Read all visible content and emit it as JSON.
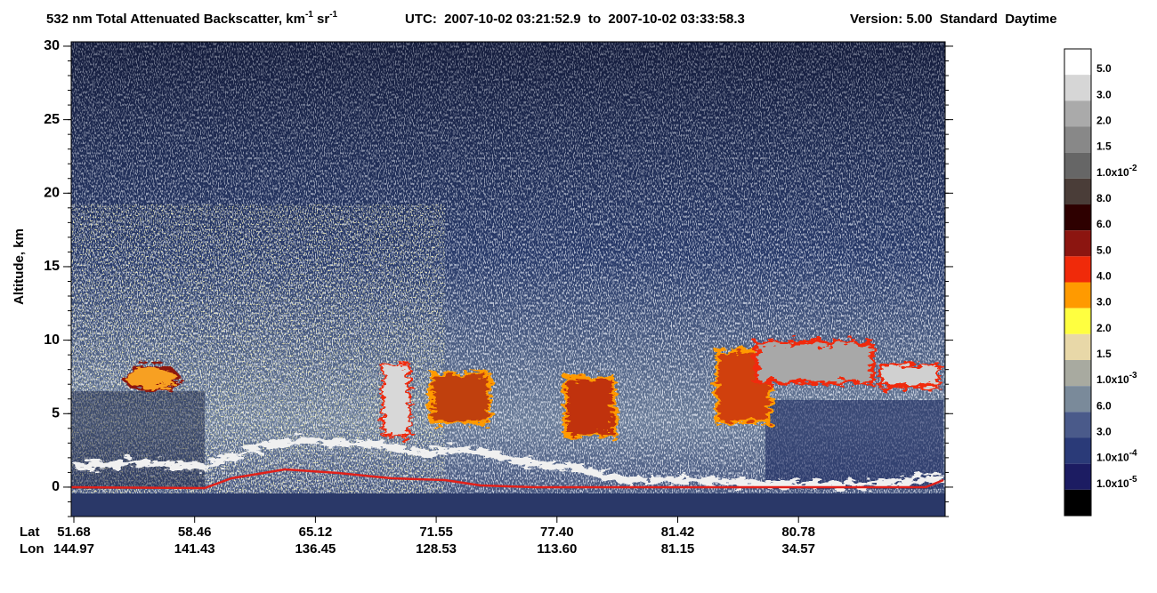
{
  "chart_data": {
    "type": "heatmap",
    "title_parts": [
      {
        "text": "532 nm Total Attenuated Backscatter, km",
        "sup": "-1"
      },
      {
        "text": " sr",
        "sup": "-1"
      },
      {
        "text": "UTC:  2007-10-02 03:21:52.9  to  2007-10-02 03:33:58.3"
      },
      {
        "text": "Version: 5.00  Standard  Daytime"
      }
    ],
    "y_label": "Altitude, km",
    "ylim": [
      -2,
      30.3
    ],
    "yticks": [
      0,
      5,
      10,
      15,
      20,
      25,
      30
    ],
    "x_row_labels": [
      "Lat",
      "Lon"
    ],
    "lat": [
      "51.68",
      "58.46",
      "65.12",
      "71.55",
      "77.40",
      "81.42",
      "80.78"
    ],
    "lon": [
      "144.97",
      "141.43",
      "136.45",
      "128.53",
      "113.60",
      "81.15",
      "34.57"
    ],
    "colorbar": {
      "colors": [
        "#ffffff",
        "#d6d6d6",
        "#aaaaaa",
        "#888888",
        "#666666",
        "#4a3d38",
        "#2e0000",
        "#8c1510",
        "#f02a0a",
        "#ff9a00",
        "#ffff40",
        "#e8d8a8",
        "#a8aaa0",
        "#7a8a9a",
        "#4a5a8a",
        "#2a3a78",
        "#1c1c62",
        "#000000"
      ],
      "labels": [
        {
          "text": "5.0"
        },
        {
          "text": "3.0"
        },
        {
          "text": "2.0"
        },
        {
          "text": "1.5"
        },
        {
          "text": "1.0x10",
          "sup": "-2"
        },
        {
          "text": "8.0"
        },
        {
          "text": "6.0"
        },
        {
          "text": "5.0"
        },
        {
          "text": "4.0"
        },
        {
          "text": "3.0"
        },
        {
          "text": "2.0"
        },
        {
          "text": "1.5"
        },
        {
          "text": "1.0x10",
          "sup": "-3"
        },
        {
          "text": "6.0"
        },
        {
          "text": "3.0"
        },
        {
          "text": "1.0x10",
          "sup": "-4"
        },
        {
          "text": "1.0x10",
          "sup": "-5"
        }
      ]
    }
  }
}
